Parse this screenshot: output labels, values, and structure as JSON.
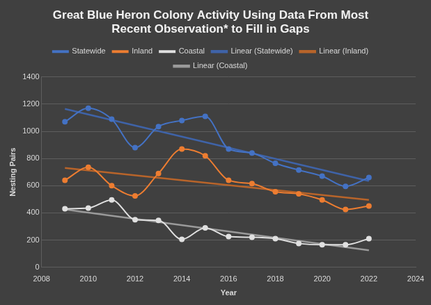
{
  "chart_data": {
    "type": "line",
    "title": "Great Blue Heron Colony Activity Using Data From Most Recent Observation* to Fill in Gaps",
    "x_label": "Year",
    "y_label": "Nesting Pairs",
    "x": [
      2009,
      2010,
      2011,
      2012,
      2013,
      2014,
      2015,
      2016,
      2017,
      2018,
      2019,
      2020,
      2021,
      2022
    ],
    "series": [
      {
        "name": "Statewide",
        "color": "#4472c4",
        "marker": "circle",
        "line_style": "smooth",
        "values": [
          1070,
          1170,
          1090,
          880,
          1035,
          1080,
          1110,
          870,
          840,
          765,
          715,
          670,
          595,
          660
        ]
      },
      {
        "name": "Inland",
        "color": "#ed7d31",
        "marker": "circle",
        "line_style": "smooth",
        "values": [
          640,
          735,
          600,
          525,
          690,
          870,
          820,
          640,
          615,
          555,
          540,
          495,
          425,
          450
        ]
      },
      {
        "name": "Coastal",
        "color": "#e0e0e0",
        "marker": "circle",
        "line_style": "smooth",
        "values": [
          430,
          435,
          495,
          350,
          345,
          205,
          290,
          225,
          220,
          210,
          175,
          165,
          165,
          210
        ]
      },
      {
        "name": "Linear (Statewide)",
        "color": "#3f63a8",
        "marker": "none",
        "line_style": "solid",
        "x": [
          2009,
          2022
        ],
        "values": [
          1165,
          635
        ]
      },
      {
        "name": "Linear (Inland)",
        "color": "#b8642a",
        "marker": "none",
        "line_style": "solid",
        "x": [
          2009,
          2022
        ],
        "values": [
          730,
          495
        ]
      },
      {
        "name": "Linear (Coastal)",
        "color": "#9a9a9a",
        "marker": "none",
        "line_style": "solid",
        "x": [
          2009,
          2022
        ],
        "values": [
          425,
          125
        ]
      }
    ],
    "xlim": [
      2008,
      2024
    ],
    "xticks": [
      2008,
      2010,
      2012,
      2014,
      2016,
      2018,
      2020,
      2022,
      2024
    ],
    "ylim": [
      0,
      1400
    ],
    "yticks": [
      0,
      200,
      400,
      600,
      800,
      1000,
      1200,
      1400
    ],
    "grid": true,
    "legend": "top"
  }
}
